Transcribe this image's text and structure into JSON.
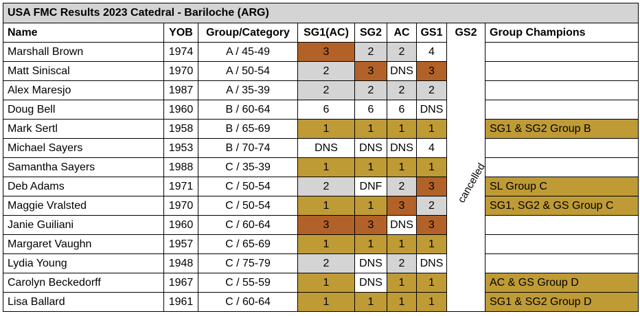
{
  "title": "USA FMC Results 2023 Catedral - Bariloche (ARG)",
  "headers": [
    "Name",
    "YOB",
    "Group/Category",
    "SG1(AC)",
    "SG2",
    "AC",
    "GS1",
    "GS2",
    "Group Champions"
  ],
  "gs2_note": "cancelled",
  "colors": {
    "gold": "#bf9b36",
    "bronze": "#b26228",
    "silver": "#d4d4d4"
  },
  "rows": [
    {
      "name": "Marshall Brown",
      "yob": "1974",
      "group": "A / 45-49",
      "sg1": "3",
      "sg2": "2",
      "ac": "2",
      "gs1": "4",
      "champ": ""
    },
    {
      "name": "Matt Siniscal",
      "yob": "1970",
      "group": "A / 50-54",
      "sg1": "2",
      "sg2": "3",
      "ac": "DNS",
      "gs1": "3",
      "champ": ""
    },
    {
      "name": "Alex Maresjo",
      "yob": "1987",
      "group": "A / 35-39",
      "sg1": "2",
      "sg2": "2",
      "ac": "2",
      "gs1": "2",
      "champ": ""
    },
    {
      "name": "Doug Bell",
      "yob": "1960",
      "group": "B / 60-64",
      "sg1": "6",
      "sg2": "6",
      "ac": "6",
      "gs1": "DNS",
      "champ": ""
    },
    {
      "name": "Mark Sertl",
      "yob": "1958",
      "group": "B / 65-69",
      "sg1": "1",
      "sg2": "1",
      "ac": "1",
      "gs1": "1",
      "champ": "SG1 & SG2 Group B"
    },
    {
      "name": "Michael Sayers",
      "yob": "1953",
      "group": "B / 70-74",
      "sg1": "DNS",
      "sg2": "DNS",
      "ac": "DNS",
      "gs1": "4",
      "champ": ""
    },
    {
      "name": "Samantha Sayers",
      "yob": "1988",
      "group": "C / 35-39",
      "sg1": "1",
      "sg2": "1",
      "ac": "1",
      "gs1": "1",
      "champ": ""
    },
    {
      "name": "Deb Adams",
      "yob": "1971",
      "group": "C / 50-54",
      "sg1": "2",
      "sg2": "DNF",
      "ac": "2",
      "gs1": "3",
      "champ": "SL Group C"
    },
    {
      "name": "Maggie Vralsted",
      "yob": "1970",
      "group": "C / 50-54",
      "sg1": "1",
      "sg2": "1",
      "ac": "3",
      "gs1": "2",
      "champ": "SG1, SG2 & GS Group C"
    },
    {
      "name": "Janie Guiliani",
      "yob": "1960",
      "group": "C / 60-64",
      "sg1": "3",
      "sg2": "3",
      "ac": "DNS",
      "gs1": "3",
      "champ": ""
    },
    {
      "name": "Margaret Vaughn",
      "yob": "1957",
      "group": "C / 65-69",
      "sg1": "1",
      "sg2": "1",
      "ac": "1",
      "gs1": "1",
      "champ": ""
    },
    {
      "name": "Lydia Young",
      "yob": "1948",
      "group": "C / 75-79",
      "sg1": "2",
      "sg2": "DNS",
      "ac": "2",
      "gs1": "DNS",
      "champ": ""
    },
    {
      "name": "Carolyn Beckedorff",
      "yob": "1967",
      "group": "C / 55-59",
      "sg1": "1",
      "sg2": "DNS",
      "ac": "1",
      "gs1": "1",
      "champ": "AC & GS Group D"
    },
    {
      "name": "Lisa Ballard",
      "yob": "1961",
      "group": "C / 60-64",
      "sg1": "1",
      "sg2": "1",
      "ac": "1",
      "gs1": "1",
      "champ": "SG1 & SG2 Group D"
    }
  ]
}
